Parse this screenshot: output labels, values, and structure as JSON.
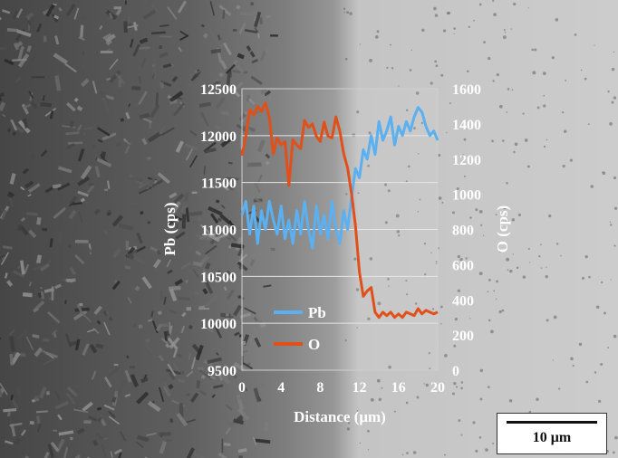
{
  "chart_data": {
    "type": "line",
    "xlabel": "Distance (μm)",
    "ylabel_left": "Pb (cps)",
    "ylabel_right": "O (cps)",
    "xlim": [
      0,
      20
    ],
    "ylim_left": [
      9500,
      12500
    ],
    "ylim_right": [
      0,
      1600
    ],
    "x_ticks": [
      "0",
      "4",
      "8",
      "12",
      "16",
      "20"
    ],
    "y_left_ticks": [
      "9500",
      "10000",
      "10500",
      "11000",
      "11500",
      "12000",
      "12500"
    ],
    "y_right_ticks": [
      "0",
      "200",
      "400",
      "600",
      "800",
      "1000",
      "1200",
      "1400",
      "1600"
    ],
    "grid": true,
    "legend_position": "bottom-left",
    "series": [
      {
        "name": "Pb",
        "axis": "left",
        "color": "#5ab0f0",
        "x": [
          0,
          0.4,
          0.8,
          1.2,
          1.6,
          2.0,
          2.4,
          2.8,
          3.2,
          3.6,
          4.0,
          4.4,
          4.8,
          5.2,
          5.6,
          6.0,
          6.4,
          6.8,
          7.2,
          7.6,
          8.0,
          8.4,
          8.8,
          9.2,
          9.6,
          10.0,
          10.4,
          10.8,
          11.2,
          11.6,
          12.0,
          12.4,
          12.8,
          13.2,
          13.6,
          14.0,
          14.4,
          14.8,
          15.2,
          15.6,
          16.0,
          16.4,
          16.8,
          17.2,
          17.6,
          18.0,
          18.4,
          18.8,
          19.2,
          19.6,
          20.0
        ],
        "values": [
          11150,
          11300,
          10950,
          11250,
          10850,
          11200,
          11000,
          11300,
          11100,
          10950,
          11250,
          10900,
          11100,
          10850,
          11200,
          10950,
          11300,
          11000,
          10800,
          11250,
          10950,
          11150,
          10900,
          11300,
          11000,
          10850,
          11200,
          11000,
          11350,
          11650,
          11550,
          11850,
          11750,
          12000,
          11800,
          12150,
          11950,
          12050,
          12200,
          11900,
          12100,
          12000,
          12150,
          12050,
          12200,
          12300,
          12250,
          12100,
          12000,
          12050,
          11950
        ]
      },
      {
        "name": "O",
        "axis": "right",
        "color": "#e0501a",
        "x": [
          0,
          0.4,
          0.8,
          1.2,
          1.6,
          2.0,
          2.4,
          2.8,
          3.2,
          3.6,
          4.0,
          4.4,
          4.8,
          5.2,
          5.6,
          6.0,
          6.4,
          6.8,
          7.2,
          7.6,
          8.0,
          8.4,
          8.8,
          9.2,
          9.6,
          10.0,
          10.4,
          10.8,
          11.2,
          11.6,
          12.0,
          12.4,
          12.8,
          13.2,
          13.6,
          14.0,
          14.4,
          14.8,
          15.2,
          15.6,
          16.0,
          16.4,
          16.8,
          17.2,
          17.6,
          18.0,
          18.4,
          18.8,
          19.2,
          19.6,
          20.0
        ],
        "values": [
          1220,
          1330,
          1480,
          1450,
          1500,
          1470,
          1520,
          1440,
          1230,
          1320,
          1280,
          1300,
          1050,
          1310,
          1280,
          1260,
          1420,
          1380,
          1400,
          1330,
          1300,
          1410,
          1330,
          1320,
          1440,
          1360,
          1230,
          1150,
          1000,
          820,
          560,
          420,
          450,
          470,
          330,
          300,
          330,
          310,
          330,
          300,
          320,
          300,
          330,
          320,
          310,
          350,
          320,
          340,
          330,
          320,
          330
        ]
      }
    ]
  },
  "scale_bar": {
    "label": "10 μm"
  }
}
